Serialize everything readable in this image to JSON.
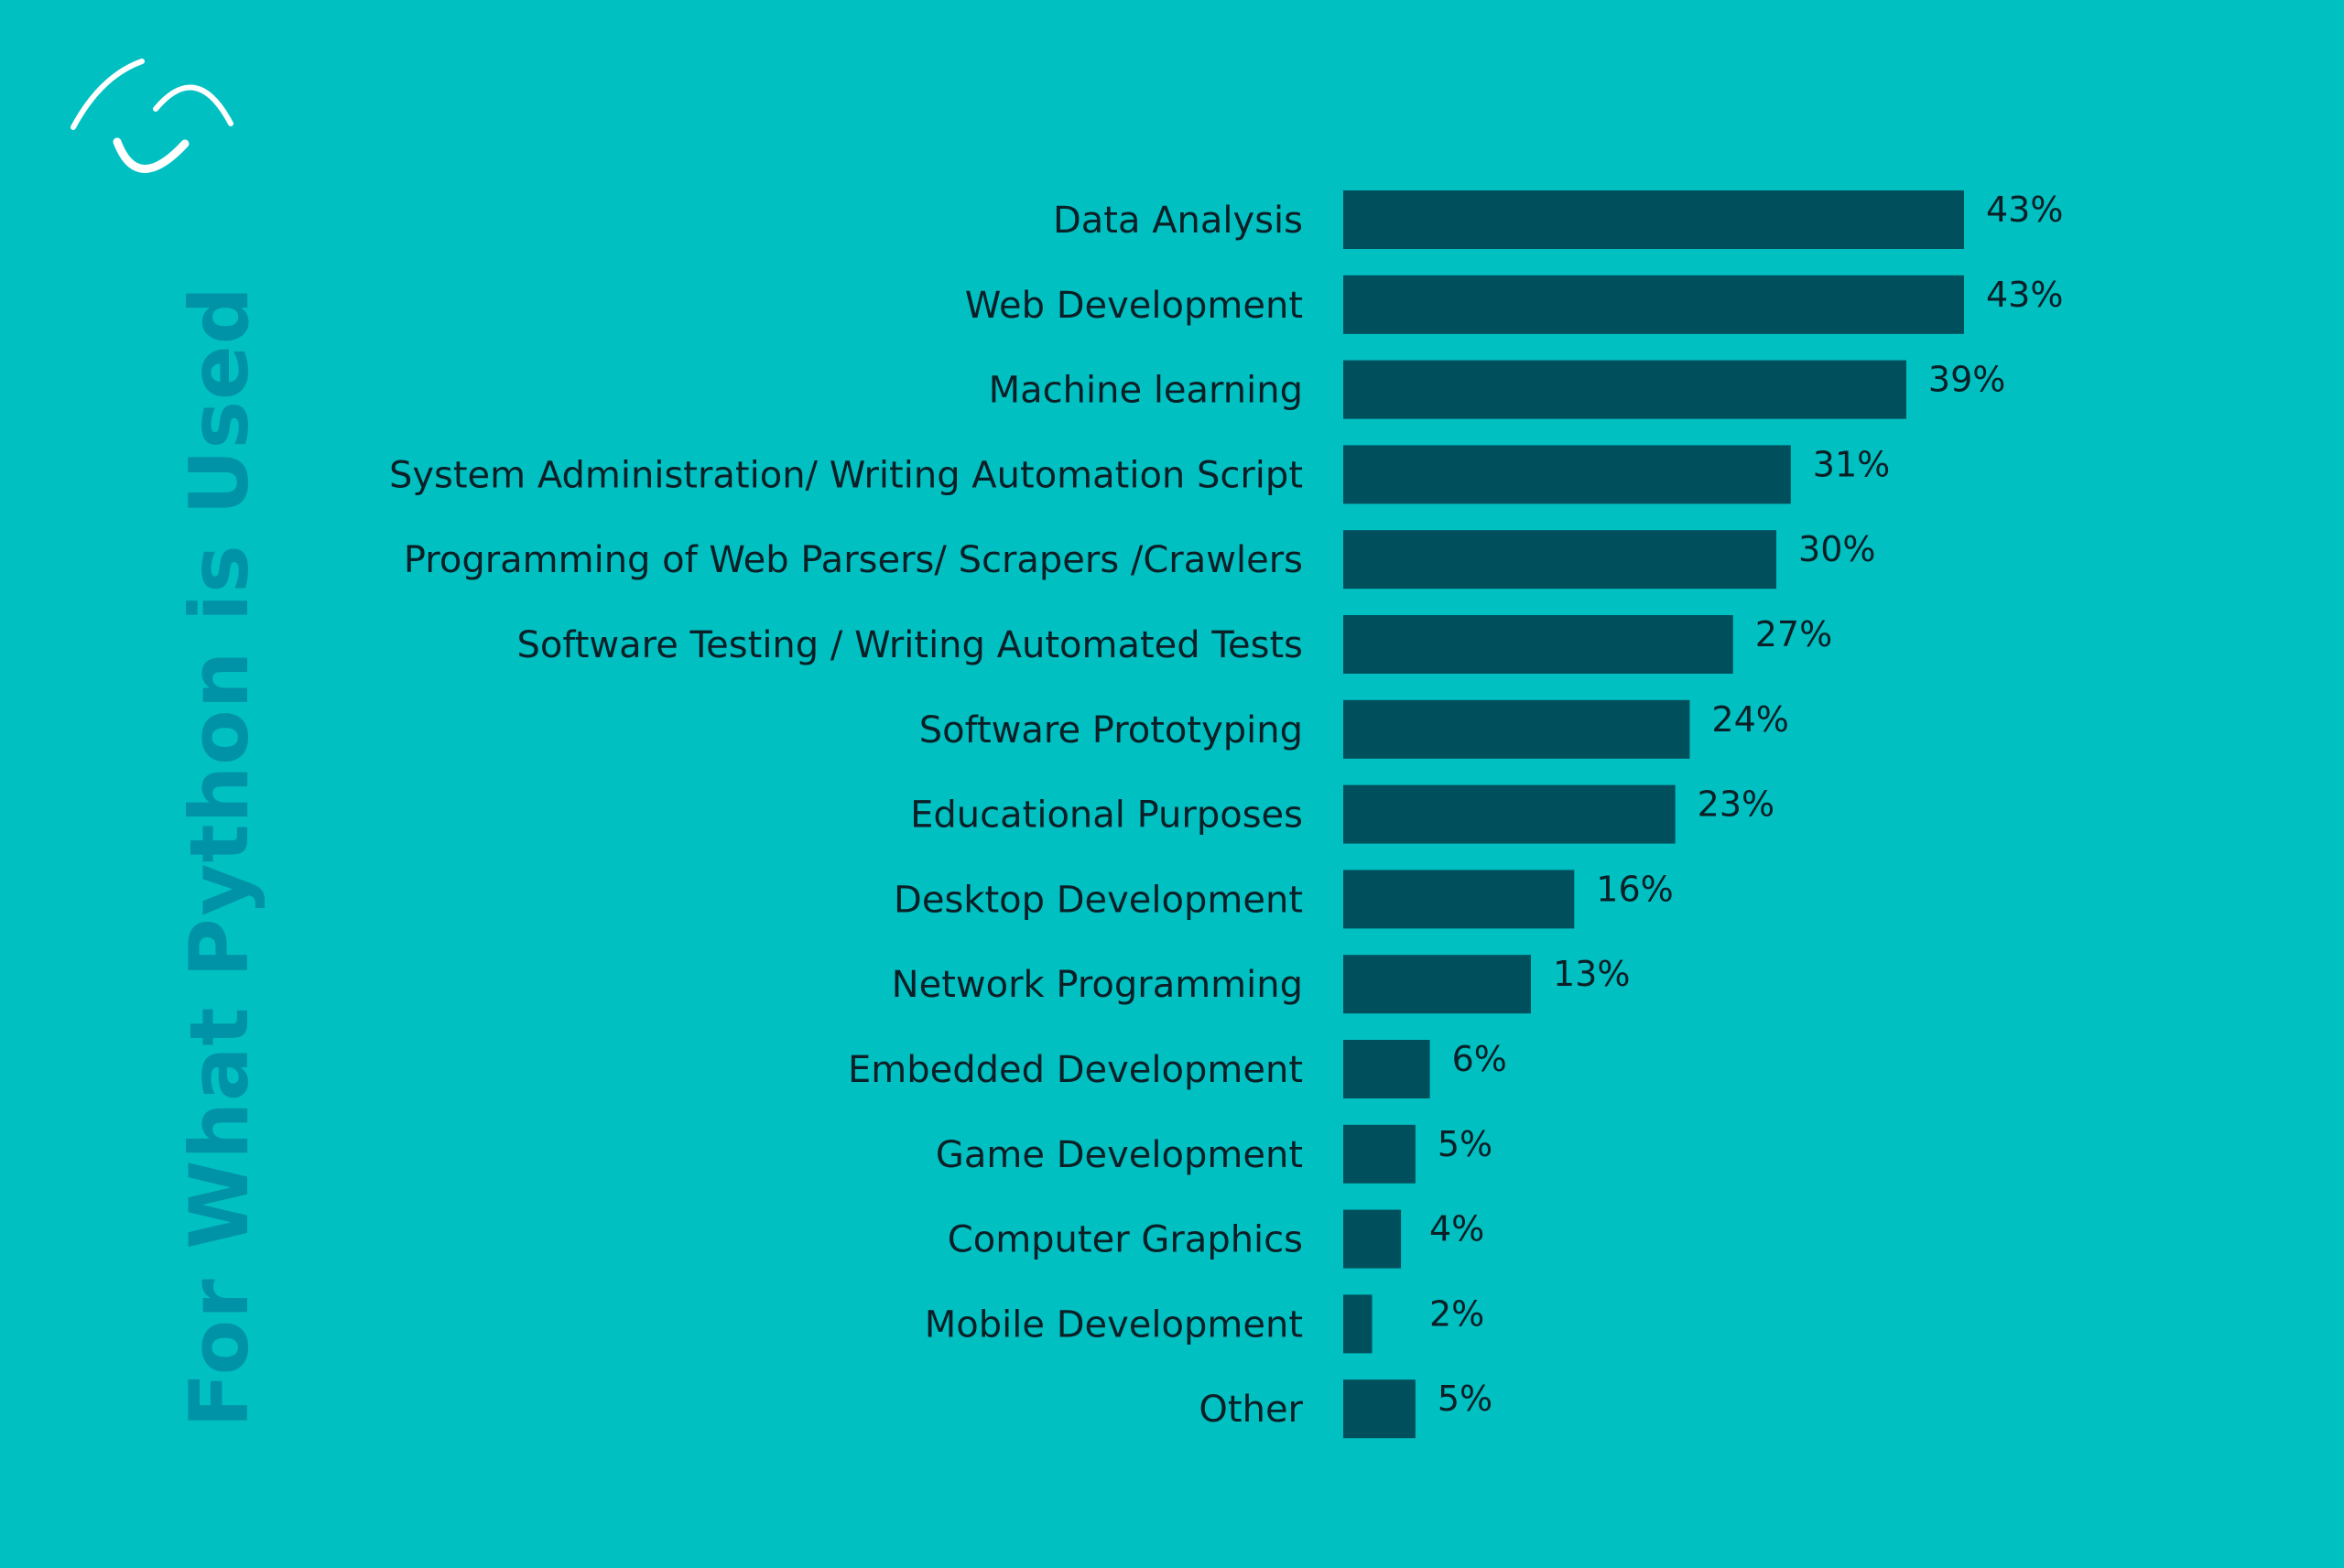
{
  "chart_data": {
    "type": "bar",
    "orientation": "horizontal",
    "title": "For What Python is Used",
    "xlabel": "",
    "ylabel": "",
    "xlim": [
      0,
      43
    ],
    "grid": false,
    "legend": "none",
    "categories": [
      "Data Analysis",
      "Web Development",
      "Machine learning",
      "System Administration/ Writing Automation Script",
      "Programming of Web Parsers/ Scrapers /Crawlers",
      "Software Testing / Writing Automated Tests",
      "Software Prototyping",
      "Educational Purposes",
      "Desktop Development",
      "Network Programming",
      "Embedded Development",
      "Game Development",
      "Computer Graphics",
      "Mobile Development",
      "Other"
    ],
    "values": [
      43,
      43,
      39,
      31,
      30,
      27,
      24,
      23,
      16,
      13,
      6,
      5,
      4,
      2,
      5
    ],
    "labels": [
      "43%",
      "43%",
      "39%",
      "31%",
      "30%",
      "27%",
      "24%",
      "23%",
      "16%",
      "13%",
      "6%",
      "5%",
      "4%",
      "2%",
      "5%"
    ],
    "colors": {
      "background": "#00C0C2",
      "bar": "#004F5C",
      "text": "#0B1F26",
      "title": "#0092A6",
      "logo": "#FFFFFF"
    }
  },
  "logo": {
    "icon": "brand-logo-icon"
  }
}
